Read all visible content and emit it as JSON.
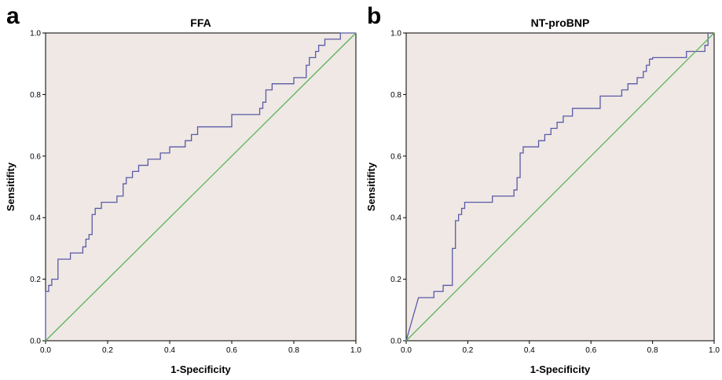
{
  "colors": {
    "roc": "#5a5aa8",
    "reference": "#5ab45a",
    "plot_background": "#efe8e4"
  },
  "chart_data": [
    {
      "type": "line",
      "panel_label": "a",
      "title": "FFA",
      "xlabel": "1-Specificity",
      "ylabel": "Sensitifity",
      "xlim": [
        0,
        1
      ],
      "ylim": [
        0,
        1
      ],
      "xticks": [
        "0.0",
        "0.2",
        "0.4",
        "0.6",
        "0.8",
        "1.0"
      ],
      "yticks": [
        "0.0",
        "0.2",
        "0.4",
        "0.6",
        "0.8",
        "1.0"
      ],
      "grid": false,
      "series": [
        {
          "role": "roc",
          "x": [
            0,
            0,
            0.01,
            0.01,
            0.02,
            0.02,
            0.04,
            0.04,
            0.08,
            0.08,
            0.12,
            0.12,
            0.13,
            0.13,
            0.14,
            0.14,
            0.15,
            0.15,
            0.16,
            0.16,
            0.18,
            0.18,
            0.23,
            0.23,
            0.25,
            0.25,
            0.26,
            0.26,
            0.28,
            0.28,
            0.3,
            0.3,
            0.33,
            0.33,
            0.37,
            0.37,
            0.4,
            0.4,
            0.45,
            0.45,
            0.47,
            0.47,
            0.49,
            0.49,
            0.6,
            0.6,
            0.69,
            0.69,
            0.7,
            0.7,
            0.71,
            0.71,
            0.73,
            0.73,
            0.8,
            0.8,
            0.84,
            0.84,
            0.85,
            0.85,
            0.87,
            0.87,
            0.88,
            0.88,
            0.9,
            0.9,
            0.94,
            0.94,
            0.95,
            0.95,
            1,
            1
          ],
          "y": [
            0,
            0.16,
            0.16,
            0.18,
            0.18,
            0.2,
            0.2,
            0.265,
            0.265,
            0.285,
            0.285,
            0.305,
            0.305,
            0.33,
            0.33,
            0.345,
            0.345,
            0.41,
            0.41,
            0.43,
            0.43,
            0.45,
            0.45,
            0.47,
            0.47,
            0.51,
            0.51,
            0.53,
            0.53,
            0.55,
            0.55,
            0.57,
            0.57,
            0.59,
            0.59,
            0.61,
            0.61,
            0.63,
            0.63,
            0.65,
            0.65,
            0.67,
            0.67,
            0.695,
            0.695,
            0.735,
            0.735,
            0.755,
            0.755,
            0.775,
            0.775,
            0.815,
            0.815,
            0.835,
            0.835,
            0.855,
            0.855,
            0.895,
            0.895,
            0.92,
            0.92,
            0.94,
            0.94,
            0.96,
            0.96,
            0.98,
            0.98,
            0.98,
            0.98,
            1,
            1,
            1
          ]
        },
        {
          "role": "reference",
          "x": [
            0,
            1
          ],
          "y": [
            0,
            1
          ]
        }
      ]
    },
    {
      "type": "line",
      "panel_label": "b",
      "title": "NT-proBNP",
      "xlabel": "1-Specificity",
      "ylabel": "Sensitifity",
      "xlim": [
        0,
        1
      ],
      "ylim": [
        0,
        1
      ],
      "xticks": [
        "0.0",
        "0.2",
        "0.4",
        "0.6",
        "0.8",
        "1.0"
      ],
      "yticks": [
        "0.0",
        "0.2",
        "0.4",
        "0.6",
        "0.8",
        "1.0"
      ],
      "grid": false,
      "series": [
        {
          "role": "roc",
          "x": [
            0,
            0.04,
            0.04,
            0.09,
            0.09,
            0.12,
            0.12,
            0.15,
            0.15,
            0.16,
            0.16,
            0.17,
            0.17,
            0.18,
            0.18,
            0.19,
            0.19,
            0.28,
            0.28,
            0.35,
            0.35,
            0.36,
            0.36,
            0.37,
            0.37,
            0.38,
            0.38,
            0.43,
            0.43,
            0.45,
            0.45,
            0.47,
            0.47,
            0.49,
            0.49,
            0.51,
            0.51,
            0.54,
            0.54,
            0.63,
            0.63,
            0.7,
            0.7,
            0.72,
            0.72,
            0.75,
            0.75,
            0.77,
            0.77,
            0.78,
            0.78,
            0.79,
            0.79,
            0.8,
            0.8,
            0.81,
            0.81,
            0.91,
            0.91,
            0.97,
            0.97,
            0.98,
            0.98
          ],
          "y": [
            0,
            0.14,
            0.14,
            0.14,
            0.16,
            0.16,
            0.18,
            0.18,
            0.3,
            0.3,
            0.39,
            0.39,
            0.41,
            0.41,
            0.43,
            0.43,
            0.45,
            0.45,
            0.47,
            0.47,
            0.49,
            0.49,
            0.53,
            0.53,
            0.61,
            0.61,
            0.63,
            0.63,
            0.65,
            0.65,
            0.67,
            0.67,
            0.69,
            0.69,
            0.71,
            0.71,
            0.73,
            0.73,
            0.755,
            0.755,
            0.795,
            0.795,
            0.815,
            0.815,
            0.835,
            0.835,
            0.855,
            0.855,
            0.875,
            0.875,
            0.895,
            0.895,
            0.915,
            0.915,
            0.92,
            0.92,
            0.92,
            0.92,
            0.94,
            0.94,
            0.96,
            0.96,
            1
          ]
        },
        {
          "role": "reference",
          "x": [
            0,
            1
          ],
          "y": [
            0,
            1
          ]
        }
      ]
    }
  ]
}
